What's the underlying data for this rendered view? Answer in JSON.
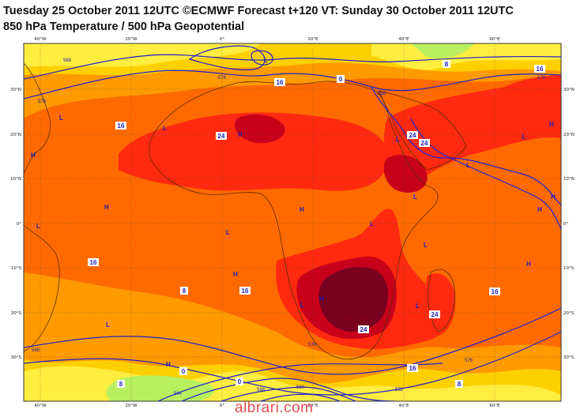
{
  "header": {
    "title_line1": "Tuesday 25 October 2011 12UTC ©ECMWF Forecast t+120 VT: Sunday 30 October 2011 12UTC",
    "title_line2": "850 hPa Temperature / 500 hPa Geopotential"
  },
  "map": {
    "top_ticks": [
      "40°W",
      "20°W",
      "0°",
      "20°E",
      "40°E",
      "60°E"
    ],
    "bottom_ticks": [
      "40°W",
      "20°W",
      "0°",
      "20°E",
      "40°E",
      "60°E"
    ],
    "left_ticks": [
      "30°N",
      "20°N",
      "10°N",
      "0°",
      "10°S",
      "20°S",
      "30°S"
    ],
    "right_ticks": [
      "30°N",
      "20°N",
      "10°N",
      "0°",
      "10°S",
      "20°S",
      "30°S"
    ],
    "temperature_labels": [
      "16",
      "16",
      "16",
      "16",
      "16",
      "16",
      "16",
      "24",
      "24",
      "24",
      "24",
      "24",
      "8",
      "8",
      "8",
      "8",
      "0",
      "0",
      "0"
    ],
    "geopotential_labels": [
      "576",
      "588",
      "576",
      "588",
      "576",
      "588",
      "576",
      "568",
      "560",
      "552",
      "576",
      "584"
    ],
    "pressure_centres": [
      "L",
      "L",
      "L",
      "L",
      "L",
      "L",
      "L",
      "L",
      "L",
      "L",
      "L",
      "L",
      "L",
      "L",
      "H",
      "H",
      "H",
      "H",
      "H",
      "H",
      "H",
      "H",
      "H",
      "H",
      "H"
    ],
    "colors": {
      "ocean_cool": "#ffff55",
      "band_light": "#ffd000",
      "band_orange": "#ff9a00",
      "band_deep_orange": "#ff6a00",
      "band_red": "#ff2a10",
      "band_dark_red": "#c8001a",
      "band_maroon": "#7a0020",
      "cold_green": "#b0f050",
      "geopotential_line": "#2020c8",
      "coastline": "#5a2a00"
    }
  },
  "watermark": "albrari.com"
}
